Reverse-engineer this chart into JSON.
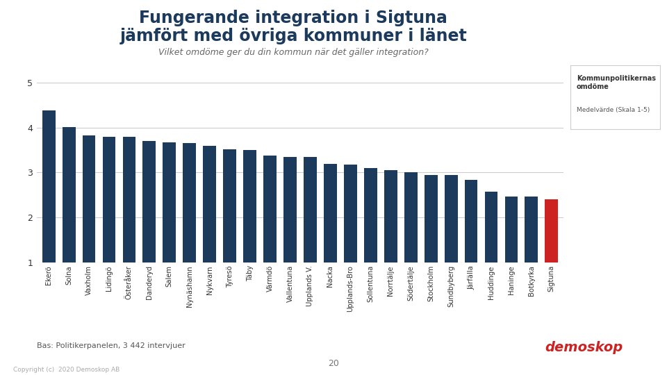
{
  "title_line1": "Fungerande integration i Sigtuna",
  "title_line2": "jämfört med övriga kommuner i länet",
  "subtitle": "Vilket omdöme ger du din kommun när det gäller integration?",
  "categories": [
    "Ekerö",
    "Solna",
    "Vaxholm",
    "Lidingö",
    "Österåker",
    "Danderyd",
    "Salem",
    "Nynäshamn",
    "Nykvarn",
    "Tyresö",
    "Täby",
    "Värmdö",
    "Vallentuna",
    "Upplands V.",
    "Nacka",
    "Upplands-Bro",
    "Sollentuna",
    "Norrtälje",
    "Södertälje",
    "Stockholm",
    "Sundbyberg",
    "Järfälla",
    "Huddinge",
    "Haninge",
    "Botkyrka",
    "Sigtuna"
  ],
  "values": [
    4.38,
    4.01,
    3.82,
    3.8,
    3.79,
    3.7,
    3.67,
    3.65,
    3.6,
    3.52,
    3.5,
    3.38,
    3.35,
    3.35,
    3.19,
    3.17,
    3.1,
    3.06,
    3.0,
    2.95,
    2.94,
    2.83,
    2.58,
    2.47,
    2.46,
    2.4
  ],
  "bar_colors": [
    "#1b3a5c",
    "#1b3a5c",
    "#1b3a5c",
    "#1b3a5c",
    "#1b3a5c",
    "#1b3a5c",
    "#1b3a5c",
    "#1b3a5c",
    "#1b3a5c",
    "#1b3a5c",
    "#1b3a5c",
    "#1b3a5c",
    "#1b3a5c",
    "#1b3a5c",
    "#1b3a5c",
    "#1b3a5c",
    "#1b3a5c",
    "#1b3a5c",
    "#1b3a5c",
    "#1b3a5c",
    "#1b3a5c",
    "#1b3a5c",
    "#1b3a5c",
    "#1b3a5c",
    "#1b3a5c",
    "#cc2222"
  ],
  "ylim": [
    1,
    5
  ],
  "yticks": [
    1,
    2,
    3,
    4,
    5
  ],
  "legend_bold": "Kommunpolitikernas\nomdöme",
  "legend_normal": "Medelvärde (Skala 1-5)",
  "footnote": "Bas: Politikerpanelen, 3 442 intervjuer",
  "page_number": "20",
  "copyright": "Copyright (c)  2020 Demoskop AB",
  "bg_color": "#ffffff",
  "title_color": "#1b3a5c",
  "subtitle_color": "#666666",
  "grid_color": "#cccccc"
}
